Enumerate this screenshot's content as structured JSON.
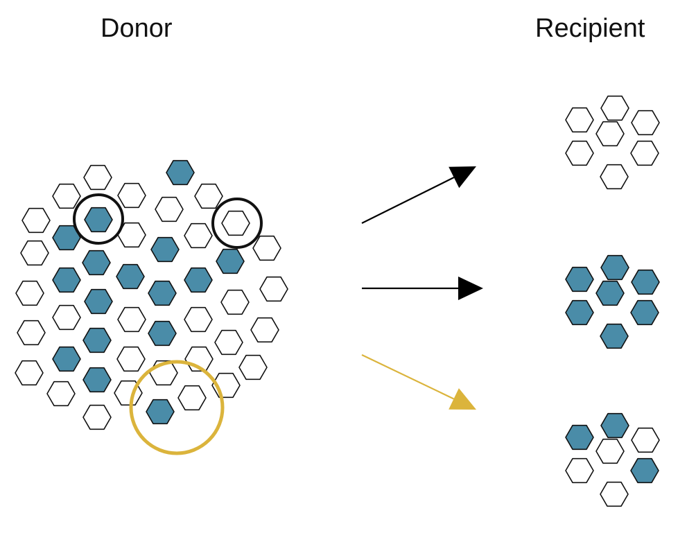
{
  "titles": {
    "donor": "Donor",
    "recipient": "Recipient"
  },
  "colors": {
    "filled": "#4a8ca8",
    "empty": "#ffffff",
    "stroke": "#111111",
    "black_arrow": "#000000",
    "gold": "#dbb43c"
  },
  "donor": {
    "cells": [
      {
        "id": "d01",
        "filled": false
      },
      {
        "id": "d02",
        "filled": true
      },
      {
        "id": "d03",
        "filled": false
      },
      {
        "id": "d04",
        "filled": false
      },
      {
        "id": "d05",
        "filled": true
      },
      {
        "id": "d06",
        "filled": false
      },
      {
        "id": "d07",
        "filled": false
      },
      {
        "id": "d08",
        "filled": false
      },
      {
        "id": "d09",
        "filled": true
      },
      {
        "id": "d10",
        "filled": false
      },
      {
        "id": "d11",
        "filled": false
      },
      {
        "id": "d12",
        "filled": false
      },
      {
        "id": "d13",
        "filled": true
      },
      {
        "id": "d14",
        "filled": false
      },
      {
        "id": "d15",
        "filled": true
      },
      {
        "id": "d16",
        "filled": false
      },
      {
        "id": "d17",
        "filled": false
      },
      {
        "id": "d18",
        "filled": true
      },
      {
        "id": "d19",
        "filled": true
      },
      {
        "id": "d20",
        "filled": false
      },
      {
        "id": "d21",
        "filled": true
      },
      {
        "id": "d22",
        "filled": false
      },
      {
        "id": "d23",
        "filled": true
      },
      {
        "id": "d24",
        "filled": true
      },
      {
        "id": "d25",
        "filled": true
      },
      {
        "id": "d26",
        "filled": true
      },
      {
        "id": "d27",
        "filled": false
      },
      {
        "id": "d28",
        "filled": true
      },
      {
        "id": "d29",
        "filled": false
      },
      {
        "id": "d30",
        "filled": true
      },
      {
        "id": "d31",
        "filled": false
      },
      {
        "id": "d32",
        "filled": false
      },
      {
        "id": "d33",
        "filled": false
      },
      {
        "id": "d34",
        "filled": false
      },
      {
        "id": "d35",
        "filled": true
      },
      {
        "id": "d36",
        "filled": false
      },
      {
        "id": "d37",
        "filled": false
      },
      {
        "id": "d38",
        "filled": true
      },
      {
        "id": "d39",
        "filled": false
      },
      {
        "id": "d40",
        "filled": false
      },
      {
        "id": "d41",
        "filled": false
      },
      {
        "id": "d42",
        "filled": false
      },
      {
        "id": "d43",
        "filled": true
      },
      {
        "id": "d44",
        "filled": false
      },
      {
        "id": "d45",
        "filled": false
      },
      {
        "id": "d46",
        "filled": false
      },
      {
        "id": "d47",
        "filled": false
      },
      {
        "id": "d48",
        "filled": true
      },
      {
        "id": "d49",
        "filled": false
      },
      {
        "id": "d50",
        "filled": false
      },
      {
        "id": "d51",
        "filled": false
      },
      {
        "id": "d52",
        "filled": false
      },
      {
        "id": "d53",
        "filled": false
      },
      {
        "id": "d54",
        "filled": true
      },
      {
        "id": "d55",
        "filled": false
      }
    ],
    "highlights": [
      {
        "id": "black-circle-filled-cell",
        "color": "black"
      },
      {
        "id": "black-circle-empty-cell",
        "color": "black"
      },
      {
        "id": "gold-circle-pair",
        "color": "gold"
      }
    ]
  },
  "arrows": [
    {
      "id": "arrow-to-empty-recipient",
      "color": "black"
    },
    {
      "id": "arrow-to-filled-recipient",
      "color": "black"
    },
    {
      "id": "arrow-to-mixed-recipient",
      "color": "gold"
    }
  ],
  "recipients": [
    {
      "id": "recipient-empty",
      "filled": [
        false,
        false,
        false,
        false,
        false,
        false,
        false
      ]
    },
    {
      "id": "recipient-filled",
      "filled": [
        true,
        true,
        true,
        true,
        true,
        true,
        true
      ]
    },
    {
      "id": "recipient-mixed",
      "filled": [
        true,
        true,
        false,
        false,
        false,
        true,
        false
      ]
    }
  ]
}
